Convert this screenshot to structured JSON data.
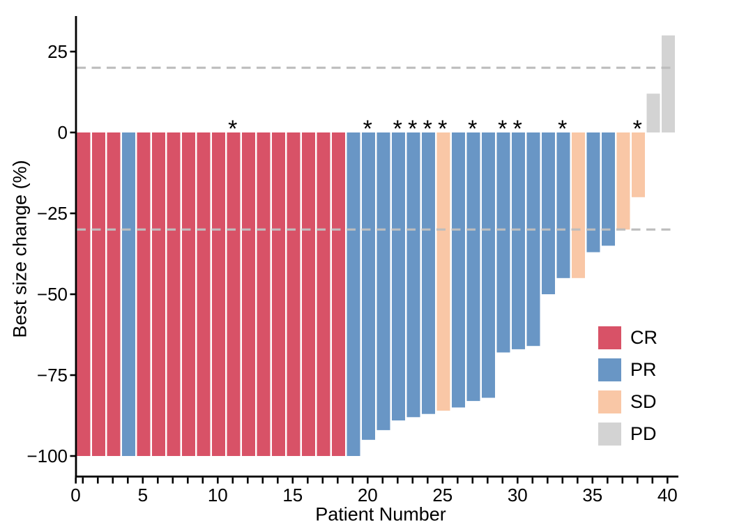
{
  "figure": {
    "background": "#FFFFFF"
  },
  "legend": {
    "items": [
      {
        "label": "CR",
        "color": "#D85267"
      },
      {
        "label": "PR",
        "color": "#6996C5"
      },
      {
        "label": "SD",
        "color": "#F9C7A6"
      },
      {
        "label": "PD",
        "color": "#D3D3D3"
      }
    ]
  },
  "chart_data": {
    "type": "bar",
    "title": "",
    "xlabel": "Patient Number",
    "ylabel": "Best size change (%)",
    "xlim": [
      0,
      40.5
    ],
    "ylim": [
      -100,
      36
    ],
    "grid": false,
    "legend_position": "inside-right",
    "x_ticks": [
      0,
      5,
      10,
      15,
      20,
      25,
      30,
      35,
      40
    ],
    "x_tick_labels": [
      "0",
      "5",
      "10",
      "15",
      "20",
      "25",
      "30",
      "35",
      "40"
    ],
    "y_ticks": [
      25,
      0,
      -25,
      -50,
      -75,
      -100
    ],
    "y_tick_labels": [
      "25",
      "0",
      "−25",
      "−50",
      "−75",
      "−100"
    ],
    "reference_lines": {
      "values": [
        20,
        -30
      ],
      "style": "dashed",
      "color": "#BDBDBD"
    },
    "colors": {
      "CR": "#D85267",
      "PR": "#6996C5",
      "SD": "#F9C7A6",
      "PD": "#D3D3D3"
    },
    "starred_patients": [
      11,
      20,
      22,
      23,
      24,
      25,
      27,
      29,
      30,
      33,
      38
    ],
    "points": [
      {
        "patient": 1,
        "value": -100,
        "response": "CR",
        "star": false
      },
      {
        "patient": 2,
        "value": -100,
        "response": "CR",
        "star": false
      },
      {
        "patient": 3,
        "value": -100,
        "response": "CR",
        "star": false
      },
      {
        "patient": 4,
        "value": -100,
        "response": "PR",
        "star": false
      },
      {
        "patient": 5,
        "value": -100,
        "response": "CR",
        "star": false
      },
      {
        "patient": 6,
        "value": -100,
        "response": "CR",
        "star": false
      },
      {
        "patient": 7,
        "value": -100,
        "response": "CR",
        "star": false
      },
      {
        "patient": 8,
        "value": -100,
        "response": "CR",
        "star": false
      },
      {
        "patient": 9,
        "value": -100,
        "response": "CR",
        "star": false
      },
      {
        "patient": 10,
        "value": -100,
        "response": "CR",
        "star": false
      },
      {
        "patient": 11,
        "value": -100,
        "response": "CR",
        "star": true
      },
      {
        "patient": 12,
        "value": -100,
        "response": "CR",
        "star": false
      },
      {
        "patient": 13,
        "value": -100,
        "response": "CR",
        "star": false
      },
      {
        "patient": 14,
        "value": -100,
        "response": "CR",
        "star": false
      },
      {
        "patient": 15,
        "value": -100,
        "response": "CR",
        "star": false
      },
      {
        "patient": 16,
        "value": -100,
        "response": "CR",
        "star": false
      },
      {
        "patient": 17,
        "value": -100,
        "response": "CR",
        "star": false
      },
      {
        "patient": 18,
        "value": -100,
        "response": "CR",
        "star": false
      },
      {
        "patient": 19,
        "value": -100,
        "response": "PR",
        "star": false
      },
      {
        "patient": 20,
        "value": -95,
        "response": "PR",
        "star": true
      },
      {
        "patient": 21,
        "value": -92,
        "response": "PR",
        "star": false
      },
      {
        "patient": 22,
        "value": -89,
        "response": "PR",
        "star": true
      },
      {
        "patient": 23,
        "value": -88,
        "response": "PR",
        "star": true
      },
      {
        "patient": 24,
        "value": -87,
        "response": "PR",
        "star": true
      },
      {
        "patient": 25,
        "value": -86,
        "response": "SD",
        "star": true
      },
      {
        "patient": 26,
        "value": -85,
        "response": "PR",
        "star": false
      },
      {
        "patient": 27,
        "value": -83,
        "response": "PR",
        "star": true
      },
      {
        "patient": 28,
        "value": -82,
        "response": "PR",
        "star": false
      },
      {
        "patient": 29,
        "value": -68,
        "response": "PR",
        "star": true
      },
      {
        "patient": 30,
        "value": -67,
        "response": "PR",
        "star": true
      },
      {
        "patient": 31,
        "value": -66,
        "response": "PR",
        "star": false
      },
      {
        "patient": 32,
        "value": -50,
        "response": "PR",
        "star": false
      },
      {
        "patient": 33,
        "value": -45,
        "response": "PR",
        "star": true
      },
      {
        "patient": 34,
        "value": -45,
        "response": "SD",
        "star": false
      },
      {
        "patient": 35,
        "value": -37,
        "response": "PR",
        "star": false
      },
      {
        "patient": 36,
        "value": -35,
        "response": "PR",
        "star": false
      },
      {
        "patient": 37,
        "value": -30,
        "response": "SD",
        "star": false
      },
      {
        "patient": 38,
        "value": -20,
        "response": "SD",
        "star": true
      },
      {
        "patient": 39,
        "value": 12,
        "response": "PD",
        "star": false
      },
      {
        "patient": 40,
        "value": 30,
        "response": "PD",
        "star": false
      }
    ]
  }
}
